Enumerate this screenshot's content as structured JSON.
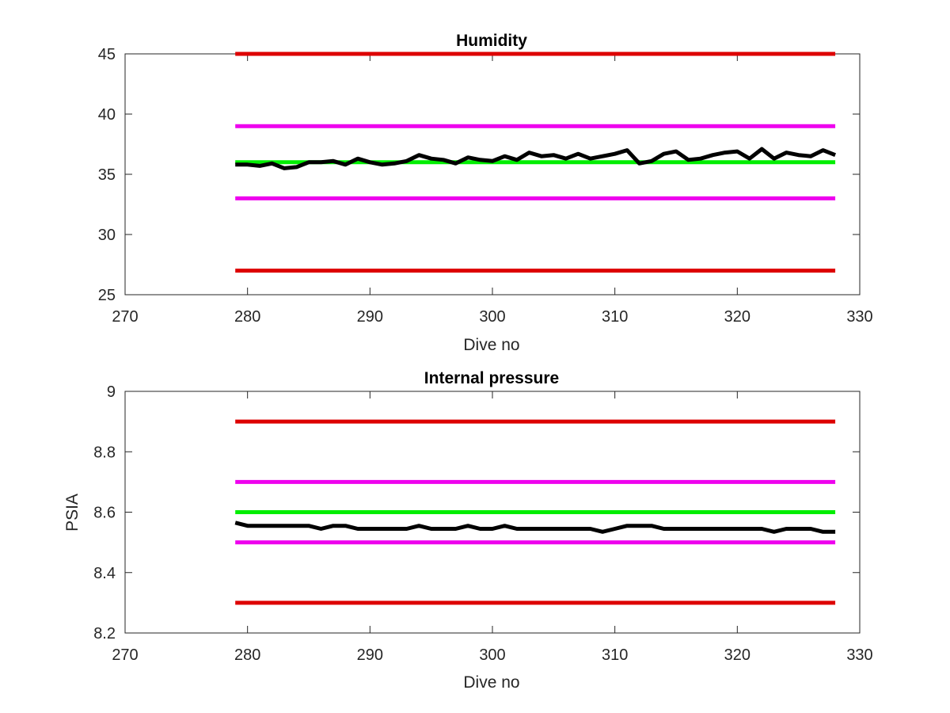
{
  "chart_data": [
    {
      "type": "line",
      "title": "Humidity",
      "xlabel": "Dive no",
      "ylabel": "",
      "xlim": [
        270,
        330
      ],
      "ylim": [
        25,
        45
      ],
      "xticks": [
        270,
        280,
        290,
        300,
        310,
        320,
        330
      ],
      "yticks": [
        25,
        30,
        35,
        40,
        45
      ],
      "xtick_labels": [
        "270",
        "280",
        "290",
        "300",
        "310",
        "320",
        "330"
      ],
      "ytick_labels": [
        "25",
        "30",
        "35",
        "40",
        "45"
      ],
      "limit_lines": [
        {
          "y": 45,
          "x": [
            279,
            328
          ],
          "color": "#dd0000"
        },
        {
          "y": 39,
          "x": [
            279,
            328
          ],
          "color": "#ee00ee"
        },
        {
          "y": 36,
          "x": [
            279,
            328
          ],
          "color": "#00ee00"
        },
        {
          "y": 33,
          "x": [
            279,
            328
          ],
          "color": "#ee00ee"
        },
        {
          "y": 27,
          "x": [
            279,
            328
          ],
          "color": "#dd0000"
        }
      ],
      "series": [
        {
          "color": "#000000",
          "x": [
            279,
            280,
            281,
            282,
            283,
            284,
            285,
            286,
            287,
            288,
            289,
            290,
            291,
            292,
            293,
            294,
            295,
            296,
            297,
            298,
            299,
            300,
            301,
            302,
            303,
            304,
            305,
            306,
            307,
            308,
            309,
            310,
            311,
            312,
            313,
            314,
            315,
            316,
            317,
            318,
            319,
            320,
            321,
            322,
            323,
            324,
            325,
            326,
            327,
            328
          ],
          "values": [
            35.8,
            35.8,
            35.7,
            35.9,
            35.5,
            35.6,
            36.0,
            36.0,
            36.1,
            35.8,
            36.3,
            36.0,
            35.8,
            35.9,
            36.1,
            36.6,
            36.3,
            36.2,
            35.9,
            36.4,
            36.2,
            36.1,
            36.5,
            36.2,
            36.8,
            36.5,
            36.6,
            36.3,
            36.7,
            36.3,
            36.5,
            36.7,
            37.0,
            35.9,
            36.1,
            36.7,
            36.9,
            36.2,
            36.3,
            36.6,
            36.8,
            36.9,
            36.3,
            37.1,
            36.3,
            36.8,
            36.6,
            36.5,
            37.0,
            36.6
          ]
        }
      ]
    },
    {
      "type": "line",
      "title": "Internal pressure",
      "xlabel": "Dive no",
      "ylabel": "PSIA",
      "xlim": [
        270,
        330
      ],
      "ylim": [
        8.2,
        9.0
      ],
      "xticks": [
        270,
        280,
        290,
        300,
        310,
        320,
        330
      ],
      "yticks": [
        8.2,
        8.4,
        8.6,
        8.8,
        9.0
      ],
      "xtick_labels": [
        "270",
        "280",
        "290",
        "300",
        "310",
        "320",
        "330"
      ],
      "ytick_labels": [
        "8.2",
        "8.4",
        "8.6",
        "8.8",
        "9"
      ],
      "limit_lines": [
        {
          "y": 8.9,
          "x": [
            279,
            328
          ],
          "color": "#dd0000"
        },
        {
          "y": 8.7,
          "x": [
            279,
            328
          ],
          "color": "#ee00ee"
        },
        {
          "y": 8.6,
          "x": [
            279,
            328
          ],
          "color": "#00ee00"
        },
        {
          "y": 8.5,
          "x": [
            279,
            328
          ],
          "color": "#ee00ee"
        },
        {
          "y": 8.3,
          "x": [
            279,
            328
          ],
          "color": "#dd0000"
        }
      ],
      "series": [
        {
          "color": "#000000",
          "x": [
            279,
            280,
            281,
            282,
            283,
            284,
            285,
            286,
            287,
            288,
            289,
            290,
            291,
            292,
            293,
            294,
            295,
            296,
            297,
            298,
            299,
            300,
            301,
            302,
            303,
            304,
            305,
            306,
            307,
            308,
            309,
            310,
            311,
            312,
            313,
            314,
            315,
            316,
            317,
            318,
            319,
            320,
            321,
            322,
            323,
            324,
            325,
            326,
            327,
            328
          ],
          "values": [
            8.565,
            8.555,
            8.555,
            8.555,
            8.555,
            8.555,
            8.555,
            8.545,
            8.555,
            8.555,
            8.545,
            8.545,
            8.545,
            8.545,
            8.545,
            8.555,
            8.545,
            8.545,
            8.545,
            8.555,
            8.545,
            8.545,
            8.555,
            8.545,
            8.545,
            8.545,
            8.545,
            8.545,
            8.545,
            8.545,
            8.535,
            8.545,
            8.555,
            8.555,
            8.555,
            8.545,
            8.545,
            8.545,
            8.545,
            8.545,
            8.545,
            8.545,
            8.545,
            8.545,
            8.535,
            8.545,
            8.545,
            8.545,
            8.535,
            8.535
          ]
        }
      ]
    }
  ]
}
